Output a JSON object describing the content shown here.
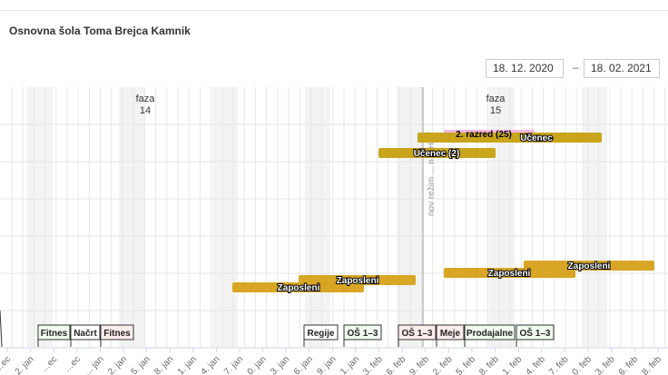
{
  "header": {
    "title": "Osnovna šola Toma Brejca Kamnik",
    "date_from": "18. 12. 2020",
    "date_separator": "–",
    "date_to": "18. 02. 2021"
  },
  "chart_data": {
    "type": "timeline",
    "phases": [
      {
        "label": "faza",
        "number": "14"
      },
      {
        "label": "faza",
        "number": "15"
      }
    ],
    "rotated_label": "nov režim ... n a HAT",
    "bars": [
      {
        "label": "2. razred (25)",
        "color": "#f4b6e1",
        "text_color": "#000000"
      },
      {
        "label": "Učenec",
        "color": "#c8a51a",
        "text_color": "#ffffff"
      },
      {
        "label": "Učenec (2)",
        "color": "#c8a51a",
        "text_color": "#ffffff"
      },
      {
        "label": "Zaposleni",
        "color": "#d8a624",
        "text_color": "#ffffff"
      },
      {
        "label": "Zaposleni",
        "color": "#d8a624",
        "text_color": "#ffffff"
      },
      {
        "label": "Zaposleni",
        "color": "#d8a624",
        "text_color": "#ffffff"
      },
      {
        "label": "Zaposleni",
        "color": "#d8a624",
        "text_color": "#ffffff"
      }
    ],
    "flags": [
      {
        "label": "Fitnes",
        "color": "#f0fbf0"
      },
      {
        "label": "Načrt",
        "color": "#ffffff"
      },
      {
        "label": "Fitnes",
        "color": "#fdecec"
      },
      {
        "label": "Regije",
        "color": "#ffffff"
      },
      {
        "label": "OŠ 1–3",
        "color": "#f0fbf0"
      },
      {
        "label": "OŠ 1–3",
        "color": "#fdecec"
      },
      {
        "label": "Meje",
        "color": "#fdecec"
      },
      {
        "label": "Prodajalne",
        "color": "#f0fbf0"
      },
      {
        "label": "OŠ 1–3",
        "color": "#f0fbf0"
      }
    ],
    "xaxis_ticks": [
      "…ec",
      "2. jan",
      "…ec",
      "…ec",
      "…. jan",
      "2. jan",
      "5. jan",
      "8. jan",
      "1. jan",
      "4. jan",
      "7. jan",
      "0. jan",
      "3. jan",
      "6. jan",
      "9. jan",
      "1. jan",
      "3. feb",
      "6. feb",
      "9. feb",
      "2. feb",
      "5. feb",
      "8. feb",
      "1. feb",
      "4. feb",
      "7. feb",
      "0. feb",
      "3. feb",
      "6. feb",
      "8. feb"
    ]
  }
}
